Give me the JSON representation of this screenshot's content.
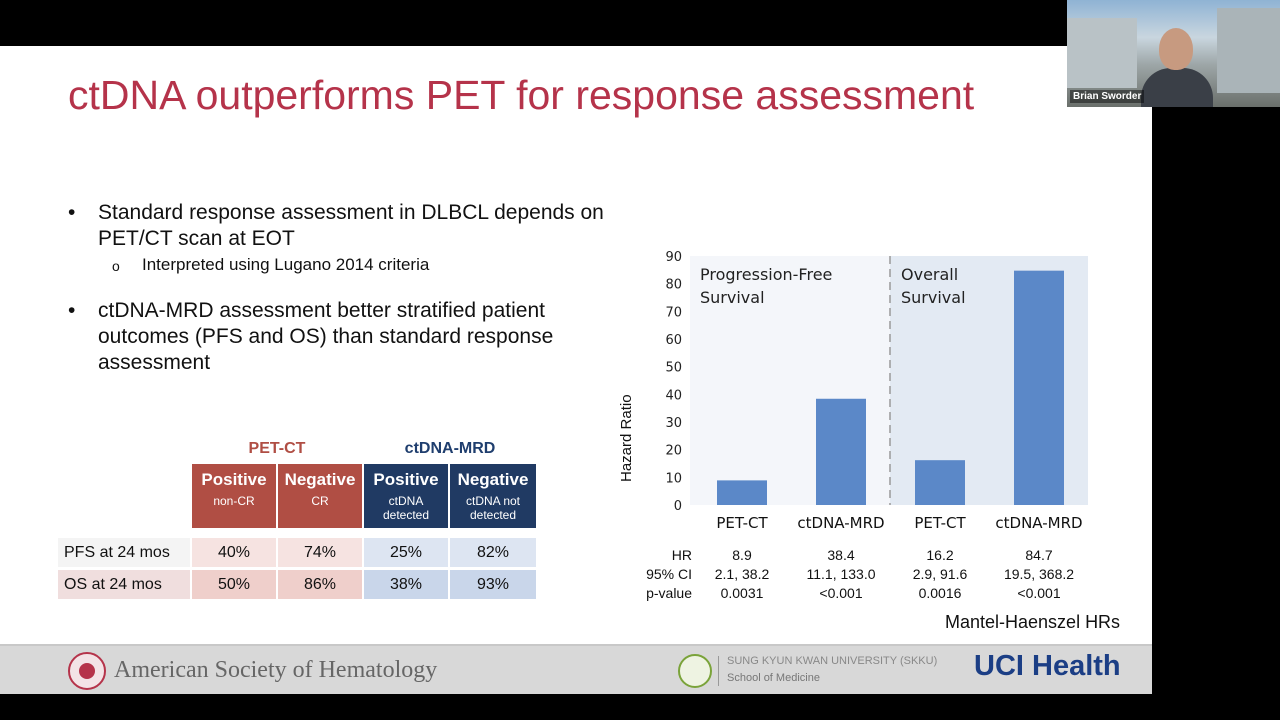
{
  "slide": {
    "title": "ctDNA outperforms PET for response assessment",
    "bullets": [
      {
        "text": "Standard response assessment in DLBCL depends on PET/CT scan at EOT",
        "sub": "Interpreted using Lugano 2014 criteria"
      },
      {
        "text": "ctDNA-MRD assessment better stratified patient outcomes (PFS and OS) than standard response assessment",
        "sub": ""
      }
    ],
    "bullet_glyph": "•",
    "subbullet_glyph": "o"
  },
  "table": {
    "groups": [
      {
        "label": "PET-CT",
        "color": "#b04e44"
      },
      {
        "label": "ctDNA-MRD",
        "color": "#1f3e6e"
      }
    ],
    "columns": [
      {
        "title": "Positive",
        "subtitle": "non-CR",
        "color": "#b04e44"
      },
      {
        "title": "Negative",
        "subtitle": "CR",
        "color": "#b04e44"
      },
      {
        "title": "Positive",
        "subtitle": "ctDNA detected",
        "color": "#203a63"
      },
      {
        "title": "Negative",
        "subtitle": "ctDNA not detected",
        "color": "#203a63"
      }
    ],
    "rows": [
      {
        "label": "PFS at 24 mos",
        "values": [
          "40%",
          "74%",
          "25%",
          "82%"
        ]
      },
      {
        "label": "OS at 24 mos",
        "values": [
          "50%",
          "86%",
          "38%",
          "93%"
        ]
      }
    ],
    "row_colors": {
      "pet_light": "#f6e3e1",
      "pet_dark": "#efcfcb",
      "mrd_light": "#dde5f2",
      "mrd_dark": "#c9d6ea"
    }
  },
  "chart_data": {
    "type": "bar",
    "categories": [
      "PET-CT",
      "ctDNA-MRD",
      "PET-CT",
      "ctDNA-MRD"
    ],
    "values": [
      8.9,
      38.4,
      16.2,
      84.7
    ],
    "ylabel": "Hazard Ratio",
    "ylim": [
      0,
      90
    ],
    "yticks": [
      0,
      10,
      20,
      30,
      40,
      50,
      60,
      70,
      80,
      90
    ],
    "panels": [
      {
        "label_line1": "Progression-Free",
        "label_line2": "Survival"
      },
      {
        "label_line1": "Overall",
        "label_line2": "Survival"
      }
    ],
    "bar_color": "#5b88c8",
    "panel_colors": [
      "#f4f6fa",
      "#e3eaf3"
    ],
    "stats": {
      "labels": [
        "HR",
        "95% CI",
        "p-value"
      ],
      "columns": [
        [
          "8.9",
          "2.1, 38.2",
          "0.0031"
        ],
        [
          "38.4",
          "11.1, 133.0",
          "<0.001"
        ],
        [
          "16.2",
          "2.9, 91.6",
          "0.0016"
        ],
        [
          "84.7",
          "19.5, 368.2",
          "<0.001"
        ]
      ]
    },
    "note": "Mantel-Haenszel HRs"
  },
  "footer": {
    "ash": "American Society of Hematology",
    "skku_line1": "SUNG KYUN KWAN UNIVERSITY (SKKU)",
    "skku_line2": "School of Medicine",
    "uci": "UCI Health"
  },
  "webcam": {
    "participant_name": "Brian Sworder"
  }
}
